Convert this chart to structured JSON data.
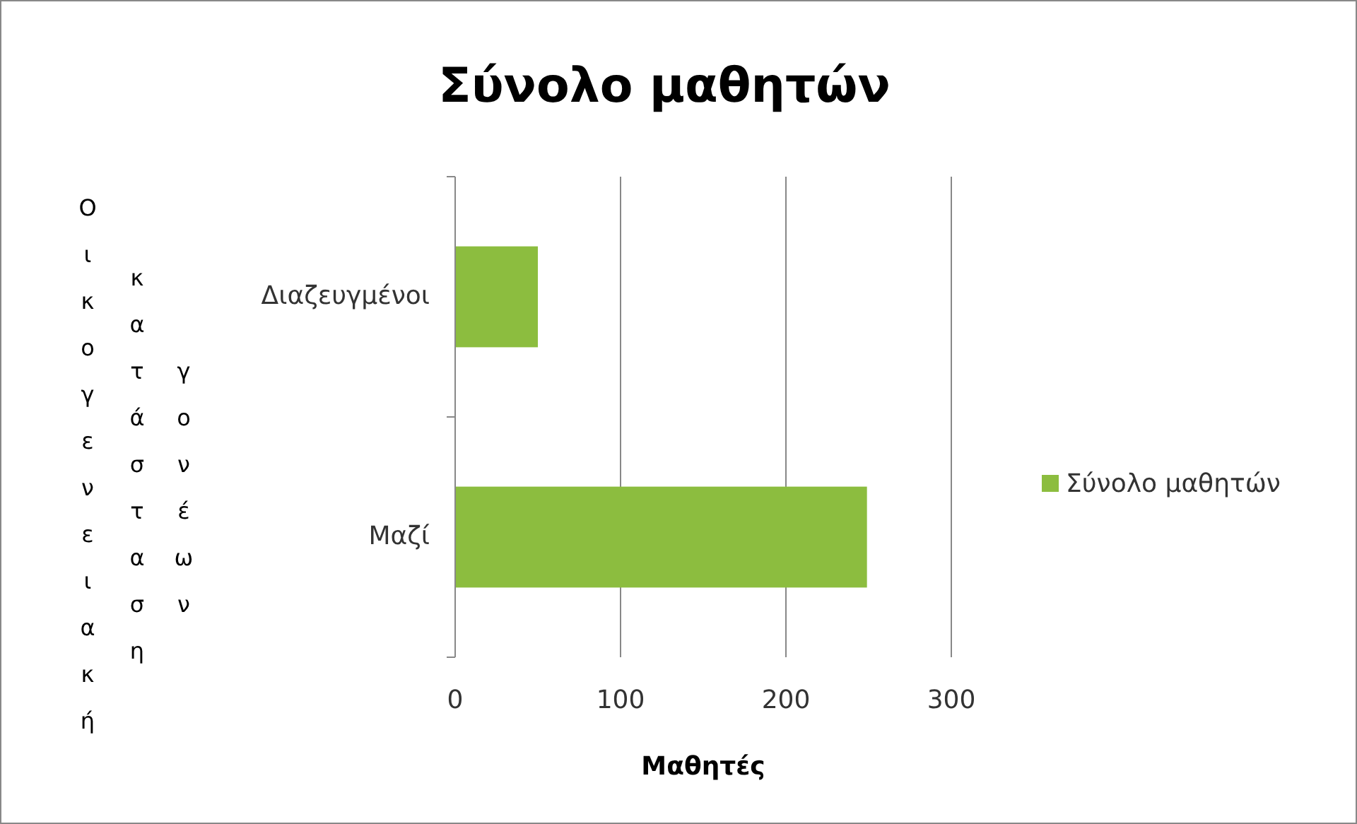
{
  "chart_data": {
    "type": "bar",
    "orientation": "horizontal",
    "title": "Σύνολο μαθητών",
    "xlabel": "Μαθητές",
    "ylabel": "Οικογενειακή κατάσταση γονέων",
    "categories": [
      "Διαζευγμένοι",
      "Μαζί"
    ],
    "series": [
      {
        "name": "Σύνολο μαθητών",
        "color": "#8cbd3f",
        "values": [
          50,
          249
        ]
      }
    ],
    "xlim": [
      0,
      300
    ],
    "xticks": [
      0,
      100,
      200,
      300
    ],
    "grid": "x",
    "legend": "right"
  }
}
